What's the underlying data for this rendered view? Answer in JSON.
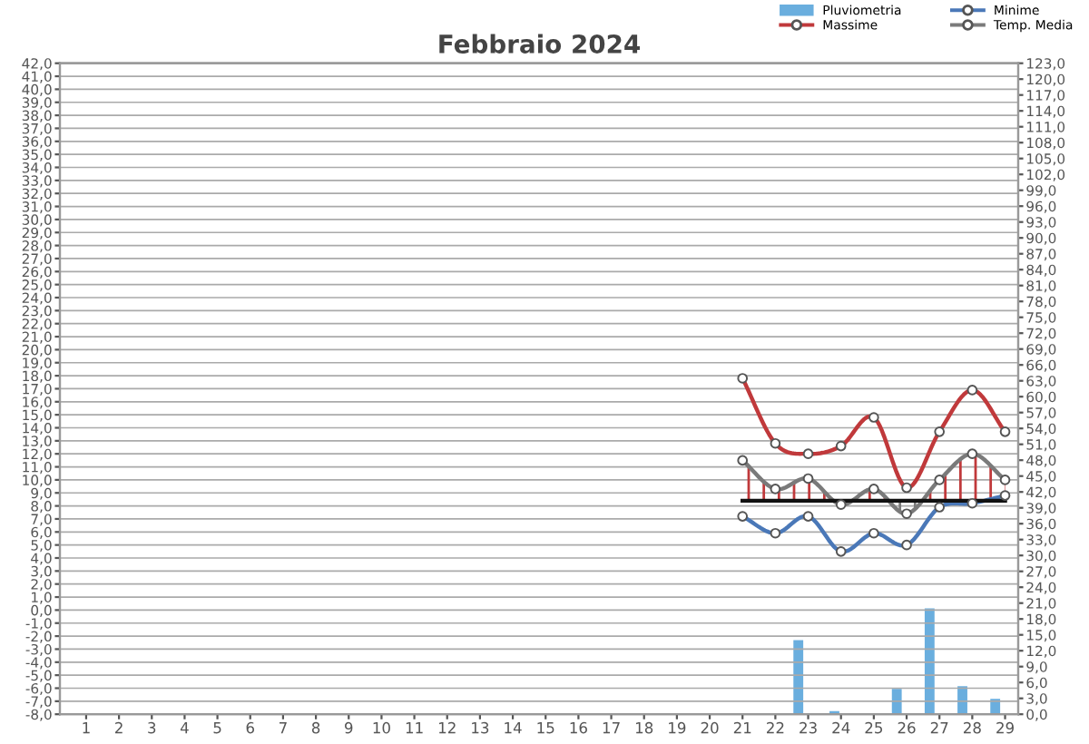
{
  "chart_data": {
    "type": "line",
    "title": "Febbraio 2024",
    "xlim": [
      0.2,
      29.4
    ],
    "xticks": [
      1,
      2,
      3,
      4,
      5,
      6,
      7,
      8,
      9,
      10,
      11,
      12,
      13,
      14,
      15,
      16,
      17,
      18,
      19,
      20,
      21,
      22,
      23,
      24,
      25,
      26,
      27,
      28,
      29
    ],
    "ylim": [
      -8,
      42
    ],
    "yticks": [
      {
        "value": -8,
        "label": "-8,0"
      },
      {
        "value": -7,
        "label": "-7,0"
      },
      {
        "value": -6,
        "label": "-6,0"
      },
      {
        "value": -5,
        "label": "-5,0"
      },
      {
        "value": -4,
        "label": "-4,0"
      },
      {
        "value": -3,
        "label": "-3,0"
      },
      {
        "value": -2,
        "label": "-2,0"
      },
      {
        "value": -1,
        "label": "-1,0"
      },
      {
        "value": 0,
        "label": "0,0"
      },
      {
        "value": 1,
        "label": "1,0"
      },
      {
        "value": 2,
        "label": "2,0"
      },
      {
        "value": 3,
        "label": "3,0"
      },
      {
        "value": 4,
        "label": "4,0"
      },
      {
        "value": 5,
        "label": "5,0"
      },
      {
        "value": 6,
        "label": "6,0"
      },
      {
        "value": 7,
        "label": "7,0"
      },
      {
        "value": 8,
        "label": "8,0"
      },
      {
        "value": 9,
        "label": "9,0"
      },
      {
        "value": 10,
        "label": "10,0"
      },
      {
        "value": 11,
        "label": "11,0"
      },
      {
        "value": 12,
        "label": "12,0"
      },
      {
        "value": 13,
        "label": "13,0"
      },
      {
        "value": 14,
        "label": "14,0"
      },
      {
        "value": 15,
        "label": "15,0"
      },
      {
        "value": 16,
        "label": "16,0"
      },
      {
        "value": 17,
        "label": "17,0"
      },
      {
        "value": 18,
        "label": "18,0"
      },
      {
        "value": 19,
        "label": "19,0"
      },
      {
        "value": 20,
        "label": "20,0"
      },
      {
        "value": 21,
        "label": "21,0"
      },
      {
        "value": 22,
        "label": "22,0"
      },
      {
        "value": 23,
        "label": "23,0"
      },
      {
        "value": 24,
        "label": "24,0"
      },
      {
        "value": 25,
        "label": "25,0"
      },
      {
        "value": 26,
        "label": "26,0"
      },
      {
        "value": 27,
        "label": "27,0"
      },
      {
        "value": 28,
        "label": "28,0"
      },
      {
        "value": 29,
        "label": "29,0"
      },
      {
        "value": 30,
        "label": "30,0"
      },
      {
        "value": 31,
        "label": "31,0"
      },
      {
        "value": 32,
        "label": "32,0"
      },
      {
        "value": 33,
        "label": "33,0"
      },
      {
        "value": 34,
        "label": "34,0"
      },
      {
        "value": 35,
        "label": "35,0"
      },
      {
        "value": 36,
        "label": "36,0"
      },
      {
        "value": 37,
        "label": "37,0"
      },
      {
        "value": 38,
        "label": "38,0"
      },
      {
        "value": 39,
        "label": "39,0"
      },
      {
        "value": 40,
        "label": "40,0"
      },
      {
        "value": 41,
        "label": "41,0"
      },
      {
        "value": 42,
        "label": "42,0"
      }
    ],
    "y2lim": [
      0,
      123
    ],
    "y2ticks": [
      {
        "value": 0,
        "label": "0,0"
      },
      {
        "value": 3,
        "label": "3,0"
      },
      {
        "value": 6,
        "label": "6,0"
      },
      {
        "value": 9,
        "label": "9,0"
      },
      {
        "value": 12,
        "label": "12,0"
      },
      {
        "value": 15,
        "label": "15,0"
      },
      {
        "value": 18,
        "label": "18,0"
      },
      {
        "value": 21,
        "label": "21,0"
      },
      {
        "value": 24,
        "label": "24,0"
      },
      {
        "value": 27,
        "label": "27,0"
      },
      {
        "value": 30,
        "label": "30,0"
      },
      {
        "value": 33,
        "label": "33,0"
      },
      {
        "value": 36,
        "label": "36,0"
      },
      {
        "value": 39,
        "label": "39,0"
      },
      {
        "value": 42,
        "label": "42,0"
      },
      {
        "value": 45,
        "label": "45,0"
      },
      {
        "value": 48,
        "label": "48,0"
      },
      {
        "value": 51,
        "label": "51,0"
      },
      {
        "value": 54,
        "label": "54,0"
      },
      {
        "value": 57,
        "label": "57,0"
      },
      {
        "value": 60,
        "label": "60,0"
      },
      {
        "value": 63,
        "label": "63,0"
      },
      {
        "value": 66,
        "label": "66,0"
      },
      {
        "value": 69,
        "label": "69,0"
      },
      {
        "value": 72,
        "label": "72,0"
      },
      {
        "value": 75,
        "label": "75,0"
      },
      {
        "value": 78,
        "label": "78,0"
      },
      {
        "value": 81,
        "label": "81,0"
      },
      {
        "value": 84,
        "label": "84,0"
      },
      {
        "value": 87,
        "label": "87,0"
      },
      {
        "value": 90,
        "label": "90,0"
      },
      {
        "value": 93,
        "label": "93,0"
      },
      {
        "value": 96,
        "label": "96,0"
      },
      {
        "value": 99,
        "label": "99,0"
      },
      {
        "value": 102,
        "label": "102,0"
      },
      {
        "value": 105,
        "label": "105,0"
      },
      {
        "value": 108,
        "label": "108,0"
      },
      {
        "value": 111,
        "label": "111,0"
      },
      {
        "value": 114,
        "label": "114,0"
      },
      {
        "value": 117,
        "label": "117,0"
      },
      {
        "value": 120,
        "label": "120,0"
      },
      {
        "value": 123,
        "label": "123,0"
      }
    ],
    "grid": "y",
    "legend": "top right",
    "marker": "circle",
    "series": [
      {
        "name": "Pluviometria",
        "type": "bar",
        "axis": "y2",
        "color": "#6aaede",
        "x": [
          22.7,
          23.8,
          25.7,
          26.7,
          27.7,
          28.7
        ],
        "values": [
          14.0,
          0.6,
          4.8,
          20.0,
          5.3,
          2.9
        ]
      },
      {
        "name": "Massime",
        "color": "#c0393b",
        "x": [
          21,
          22,
          23,
          24,
          25,
          26,
          27,
          28,
          29
        ],
        "values": [
          17.8,
          12.8,
          12.0,
          12.6,
          14.8,
          9.4,
          13.7,
          16.9,
          13.7
        ]
      },
      {
        "name": "Minime",
        "color": "#4a78b8",
        "x": [
          21,
          22,
          23,
          24,
          25,
          26,
          27,
          28,
          29
        ],
        "values": [
          7.2,
          5.9,
          7.2,
          4.5,
          5.9,
          5.0,
          7.9,
          8.2,
          8.8
        ]
      },
      {
        "name": "Temp. Media",
        "color": "#7a7a7a",
        "x": [
          21,
          22,
          23,
          24,
          25,
          26,
          27,
          28,
          29
        ],
        "values": [
          11.5,
          9.3,
          10.1,
          8.1,
          9.3,
          7.4,
          10.0,
          12.0,
          10.0
        ]
      },
      {
        "color": "#111111",
        "marker": "none",
        "x": [
          21,
          29
        ],
        "values": [
          8.4,
          8.4
        ]
      }
    ]
  }
}
